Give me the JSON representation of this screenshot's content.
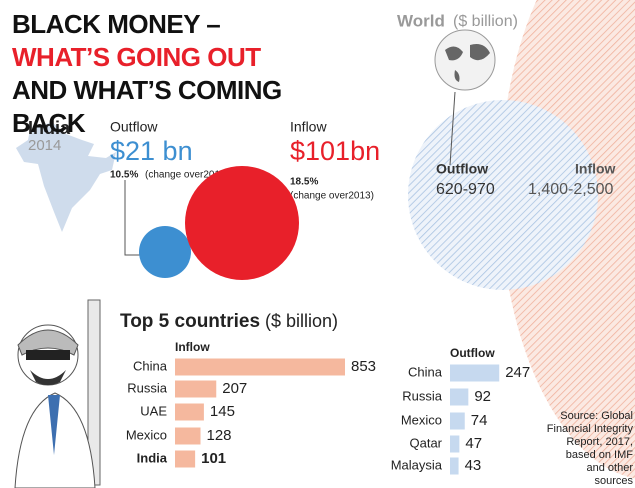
{
  "title": {
    "part1": "BLACK MONEY – ",
    "part2": "WHAT’S GOING OUT",
    "part3": " AND WHAT’S COMING BACK"
  },
  "india": {
    "name": "India",
    "year": "2014",
    "outflow": {
      "label": "Outflow",
      "value": 21,
      "value_label": "$21 bn",
      "change_pct": "10.5%",
      "change_note": "(change over2013)",
      "color": "#3d8fd1"
    },
    "inflow": {
      "label": "Inflow",
      "value": 101,
      "value_label": "$101bn",
      "change_pct": "18.5%",
      "change_note": "(change over2013)",
      "color": "#e8202a"
    }
  },
  "world": {
    "title": "World",
    "unit": "($ billion)",
    "outflow": {
      "label": "Outflow",
      "range": "620-970"
    },
    "inflow": {
      "label": "Inflow",
      "range": "1,400-2,500"
    }
  },
  "top5": {
    "title": "Top 5 countries",
    "unit": "($ billion)"
  },
  "chart_data": [
    {
      "type": "bar",
      "title": "Inflow",
      "categories": [
        "China",
        "Russia",
        "UAE",
        "Mexico",
        "India"
      ],
      "values": [
        853,
        207,
        145,
        128,
        101
      ],
      "color": "#f5b89e"
    },
    {
      "type": "bar",
      "title": "Outflow",
      "categories": [
        "China",
        "Russia",
        "Mexico",
        "Qatar",
        "Malaysia"
      ],
      "values": [
        247,
        92,
        74,
        47,
        43
      ],
      "color": "#c6d9ef"
    }
  ],
  "source": "Source: Global Financial Integrity Report, 2017, based on IMF and other sources"
}
